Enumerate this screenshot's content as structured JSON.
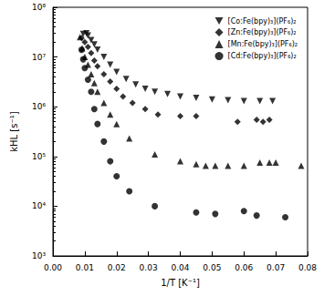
{
  "chart_data": {
    "type": "scatter",
    "x_label": "1/T [K⁻¹]",
    "y_label": "kHL [s⁻¹]",
    "log": "y",
    "grid": false,
    "legend": "upper right",
    "xlim": [
      0,
      0.08
    ],
    "xticks": [
      {
        "value": 0,
        "label": "0.00"
      },
      {
        "value": 0.01,
        "label": "0.01"
      },
      {
        "value": 0.02,
        "label": "0.02"
      },
      {
        "value": 0.03,
        "label": "0.03"
      },
      {
        "value": 0.04,
        "label": "0.04"
      },
      {
        "value": 0.05,
        "label": "0.05"
      },
      {
        "value": 0.06,
        "label": "0.06"
      },
      {
        "value": 0.07,
        "label": "0.07"
      },
      {
        "value": 0.08,
        "label": "0.08"
      }
    ],
    "ylim": [
      1000,
      100000000
    ],
    "yticks": [
      {
        "value": 1000,
        "label": "10³"
      },
      {
        "value": 10000,
        "label": "10⁴"
      },
      {
        "value": 100000,
        "label": "10⁵"
      },
      {
        "value": 1000000,
        "label": "10⁶"
      },
      {
        "value": 10000000,
        "label": "10⁷"
      },
      {
        "value": 100000000,
        "label": "10⁸"
      }
    ],
    "series": [
      {
        "name": "[Co:Fe(bpy)₃](PF₆)₂",
        "color": "#000000",
        "marker": "triangle-down",
        "x": [
          0.0095,
          0.0105,
          0.011,
          0.012,
          0.013,
          0.014,
          0.016,
          0.018,
          0.02,
          0.023,
          0.026,
          0.029,
          0.032,
          0.036,
          0.04,
          0.045,
          0.05,
          0.055,
          0.06,
          0.065,
          0.069
        ],
        "values": [
          29000000,
          30000000,
          27000000,
          22000000,
          18000000,
          14000000,
          10000000,
          7000000,
          5000000,
          3600000,
          2800000,
          2300000,
          2000000,
          1800000,
          1600000,
          1500000,
          1400000,
          1350000,
          1300000,
          1300000,
          1300000
        ]
      },
      {
        "name": "[Zn:Fe(bpy)₃](PF₆)₂",
        "color": "#000000",
        "marker": "diamond",
        "x": [
          0.009,
          0.01,
          0.011,
          0.012,
          0.013,
          0.014,
          0.016,
          0.018,
          0.02,
          0.022,
          0.025,
          0.029,
          0.033,
          0.04,
          0.045,
          0.058,
          0.064,
          0.066,
          0.068
        ],
        "values": [
          24000000,
          20000000,
          16000000,
          12000000,
          8500000,
          6500000,
          4500000,
          3200000,
          2300000,
          1600000,
          1200000,
          900000,
          700000,
          650000,
          650000,
          500000,
          550000,
          500000,
          550000
        ]
      },
      {
        "name": "[Mn:Fe(bpy)₃](PF₆)₂",
        "color": "#000000",
        "marker": "triangle",
        "x": [
          0.0085,
          0.0092,
          0.01,
          0.011,
          0.012,
          0.013,
          0.014,
          0.016,
          0.018,
          0.02,
          0.024,
          0.032,
          0.04,
          0.045,
          0.048,
          0.051,
          0.055,
          0.06,
          0.065,
          0.068,
          0.07,
          0.078
        ],
        "values": [
          25000000,
          15000000,
          10000000,
          7000000,
          4500000,
          3000000,
          2000000,
          1200000,
          700000,
          450000,
          230000,
          110000,
          80000,
          70000,
          65000,
          65000,
          65000,
          65000,
          75000,
          75000,
          75000,
          65000
        ]
      },
      {
        "name": "[Cd:Fe(bpy)₃](PF₆)₂",
        "color": "#000000",
        "marker": "circle",
        "x": [
          0.009,
          0.0095,
          0.01,
          0.011,
          0.012,
          0.013,
          0.014,
          0.016,
          0.018,
          0.02,
          0.024,
          0.032,
          0.045,
          0.051,
          0.06,
          0.064,
          0.073
        ],
        "values": [
          14000000,
          9000000,
          6000000,
          3500000,
          2000000,
          900000,
          450000,
          200000,
          80000,
          40000,
          20000,
          10000,
          7500,
          7000,
          8000,
          6500,
          6000
        ]
      }
    ]
  }
}
